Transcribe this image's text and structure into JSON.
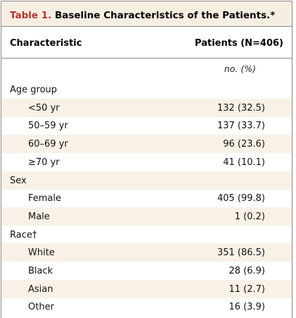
{
  "table": {
    "number": "Table 1.",
    "title": "Baseline Characteristics of the Patients.*",
    "header": {
      "characteristic": "Characteristic",
      "patients": "Patients (N=406)",
      "unit": "no. (%)"
    },
    "rows": [
      {
        "label": "Age group",
        "value": "",
        "kind": "group"
      },
      {
        "label": "<50 yr",
        "value": "132 (32.5)",
        "kind": "sub"
      },
      {
        "label": "50–59 yr",
        "value": "137 (33.7)",
        "kind": "sub"
      },
      {
        "label": "60–69 yr",
        "value": "96 (23.6)",
        "kind": "sub"
      },
      {
        "label": "≥70 yr",
        "value": "41 (10.1)",
        "kind": "sub"
      },
      {
        "label": "Sex",
        "value": "",
        "kind": "group"
      },
      {
        "label": "Female",
        "value": "405 (99.8)",
        "kind": "sub"
      },
      {
        "label": "Male",
        "value": "1 (0.2)",
        "kind": "sub"
      },
      {
        "label": "Race†",
        "value": "",
        "kind": "group"
      },
      {
        "label": "White",
        "value": "351 (86.5)",
        "kind": "sub"
      },
      {
        "label": "Black",
        "value": "28 (6.9)",
        "kind": "sub"
      },
      {
        "label": "Asian",
        "value": "11 (2.7)",
        "kind": "sub"
      },
      {
        "label": "Other",
        "value": "16 (3.9)",
        "kind": "sub"
      }
    ]
  },
  "colors": {
    "title_bg": "#f7eee2",
    "row_shade": "#f9f1e6",
    "table_number": "#b5332a"
  }
}
